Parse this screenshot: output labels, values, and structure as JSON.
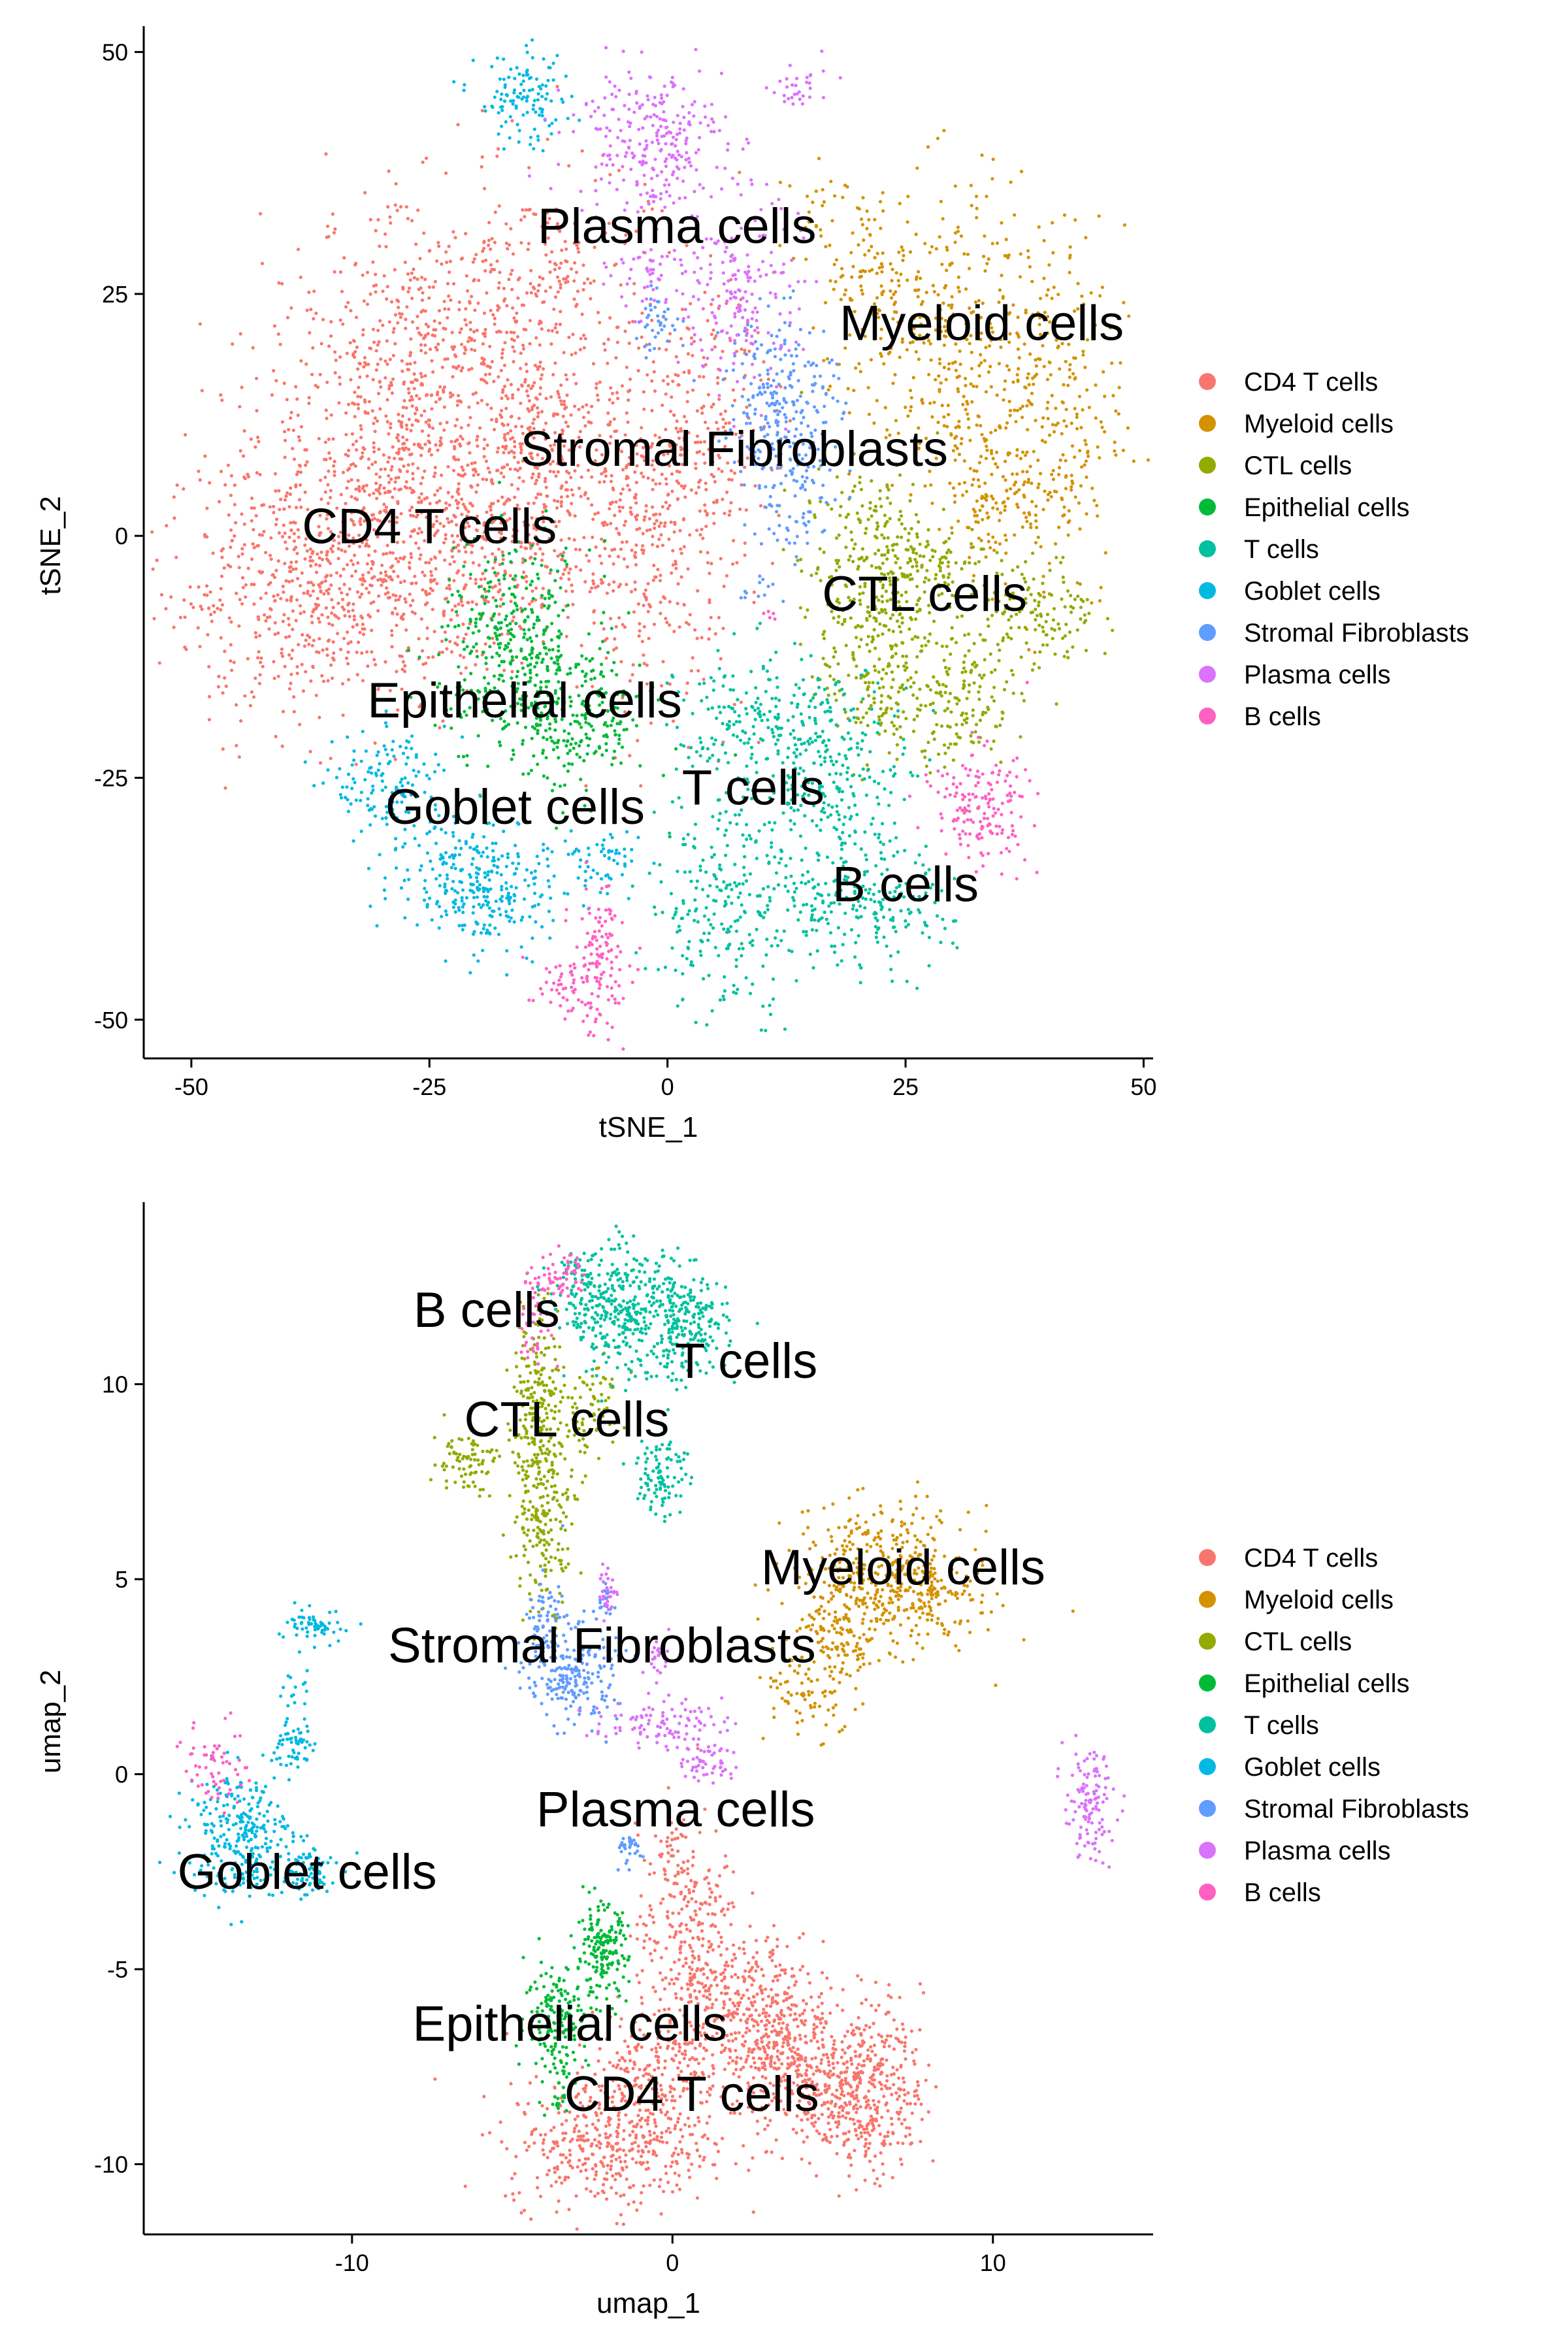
{
  "palette": {
    "CD4 T cells": "#F8766D",
    "Myeloid cells": "#D39200",
    "CTL cells": "#93AA00",
    "Epithelial cells": "#00BA38",
    "T cells": "#00C19F",
    "Goblet cells": "#00B9E3",
    "Stromal Fibroblasts": "#619CFF",
    "Plasma cells": "#DB72FB",
    "B cells": "#FF61C3"
  },
  "chart_data": [
    {
      "type": "scatter",
      "title": "",
      "xlabel": "tSNE_1",
      "ylabel": "tSNE_2",
      "xlim": [
        -55,
        51
      ],
      "ylim": [
        -54,
        52
      ],
      "xticks": [
        -50,
        -25,
        0,
        25,
        50
      ],
      "xtick_labels": [
        "-50",
        "-25",
        "0",
        "25",
        "50"
      ],
      "yticks": [
        -50,
        -25,
        0,
        25,
        50
      ],
      "ytick_labels": [
        "-50",
        "-25",
        "0",
        "25",
        "50"
      ],
      "grid": false,
      "legend_position": "right",
      "legend": [
        "CD4 T cells",
        "Myeloid cells",
        "CTL cells",
        "Epithelial cells",
        "T cells",
        "Goblet cells",
        "Stromal Fibroblasts",
        "Plasma cells",
        "B cells"
      ],
      "clusters": [
        {
          "name": "CD4 T cells",
          "blobs": [
            [
              -37,
              -5,
              8,
              7,
              700
            ],
            [
              -28,
              14,
              7,
              9,
              550
            ],
            [
              -20,
              20,
              7,
              8,
              300
            ],
            [
              -14,
              3,
              6,
              7,
              300
            ],
            [
              -24,
              -2,
              6,
              6,
              250
            ],
            [
              -10,
              28,
              4,
              5,
              120
            ],
            [
              -2,
              -1,
              5,
              9,
              350
            ],
            [
              3,
              12,
              4,
              7,
              200
            ],
            [
              -13,
              12,
              4,
              4,
              120
            ]
          ]
        },
        {
          "name": "Myeloid cells",
          "blobs": [
            [
              30,
              20,
              5,
              8,
              320
            ],
            [
              40,
              12,
              4,
              10,
              280
            ],
            [
              22,
              26,
              3,
              5,
              100
            ],
            [
              34,
              4,
              3,
              3,
              100
            ],
            [
              16,
              34,
              1.5,
              3,
              25
            ],
            [
              28,
              42,
              0.6,
              0.6,
              3
            ]
          ]
        },
        {
          "name": "CTL cells",
          "blobs": [
            [
              22,
              -3,
              4,
              5,
              260
            ],
            [
              22,
              -14,
              3,
              5,
              200
            ],
            [
              31,
              -16,
              2.5,
              4,
              150
            ],
            [
              39,
              -8,
              3,
              3,
              130
            ],
            [
              28,
              -3,
              3,
              2,
              60
            ]
          ]
        },
        {
          "name": "Epithelial cells",
          "blobs": [
            [
              -16,
              -11,
              4,
              5,
              350
            ],
            [
              -10,
              -19,
              4,
              4,
              250
            ]
          ]
        },
        {
          "name": "T cells",
          "blobs": [
            [
              9,
              -20,
              4,
              4,
              200
            ],
            [
              18,
              -25,
              4,
              5,
              250
            ],
            [
              6,
              -38,
              4,
              6,
              250
            ],
            [
              22,
              -39,
              4,
              3,
              150
            ],
            [
              16,
              -38,
              2,
              2,
              50
            ]
          ]
        },
        {
          "name": "Goblet cells",
          "blobs": [
            [
              -21,
              -35,
              4,
              3,
              200
            ],
            [
              -29,
              -26,
              3,
              3,
              150
            ],
            [
              -17,
              -38,
              3,
              3,
              100
            ],
            [
              -15,
              45,
              2.5,
              2.5,
              120
            ],
            [
              -8,
              -34,
              2,
              2,
              40
            ],
            [
              -5,
              -34,
              1,
              2,
              20
            ]
          ]
        },
        {
          "name": "Stromal Fibroblasts",
          "blobs": [
            [
              12,
              15,
              3,
              4,
              200
            ],
            [
              13,
              5,
              2.5,
              4,
              120
            ],
            [
              -1,
              22,
              1.5,
              1.5,
              40
            ],
            [
              9,
              -5,
              1,
              1,
              10
            ]
          ]
        },
        {
          "name": "Plasma cells",
          "blobs": [
            [
              -2,
              41,
              4,
              4,
              260
            ],
            [
              8,
              25,
              3,
              5,
              180
            ],
            [
              -2,
              27,
              2,
              2,
              50
            ],
            [
              14,
              46,
              1.5,
              1.5,
              30
            ]
          ]
        },
        {
          "name": "B cells",
          "blobs": [
            [
              33,
              -28,
              2.5,
              3,
              150
            ],
            [
              -7,
              -44,
              1.5,
              4,
              120
            ],
            [
              -11,
              -47,
              2,
              1.5,
              50
            ],
            [
              29,
              -26,
              1,
              1,
              10
            ],
            [
              11,
              -8,
              0.5,
              0.5,
              5
            ]
          ]
        }
      ],
      "annotations": [
        {
          "text": "Plasma cells",
          "x": 1,
          "y": 32
        },
        {
          "text": "Myeloid cells",
          "x": 33,
          "y": 22
        },
        {
          "text": "Stromal Fibroblasts",
          "x": 7,
          "y": 9
        },
        {
          "text": "CD4 T cells",
          "x": -25,
          "y": 1
        },
        {
          "text": "CTL cells",
          "x": 27,
          "y": -6
        },
        {
          "text": "Epithelial cells",
          "x": -15,
          "y": -17
        },
        {
          "text": "Goblet cells",
          "x": -16,
          "y": -28
        },
        {
          "text": "T cells",
          "x": 9,
          "y": -26
        },
        {
          "text": "B cells",
          "x": 25,
          "y": -36
        }
      ]
    },
    {
      "type": "scatter",
      "title": "",
      "xlabel": "umap_1",
      "ylabel": "umap_2",
      "xlim": [
        -16.5,
        15
      ],
      "ylim": [
        -11.8,
        14.5
      ],
      "xticks": [
        -10,
        0,
        10
      ],
      "xtick_labels": [
        "-10",
        "0",
        "10"
      ],
      "yticks": [
        -10,
        -5,
        0,
        5,
        10
      ],
      "ytick_labels": [
        "-10",
        "-5",
        "0",
        "5",
        "10"
      ],
      "grid": false,
      "legend_position": "right",
      "legend": [
        "CD4 T cells",
        "Myeloid cells",
        "CTL cells",
        "Epithelial cells",
        "T cells",
        "Goblet cells",
        "Stromal Fibroblasts",
        "Plasma cells",
        "B cells"
      ],
      "clusters": [
        {
          "name": "CD4 T cells",
          "blobs": [
            [
              6,
              -8,
              0.9,
              1.1,
              450
            ],
            [
              2.5,
              -6.3,
              1.1,
              1.0,
              400
            ],
            [
              -2,
              -9.5,
              1.6,
              0.8,
              400
            ],
            [
              0.5,
              -4,
              0.8,
              1.3,
              250
            ],
            [
              -0.5,
              -7.5,
              1.0,
              1.0,
              250
            ],
            [
              4,
              -7.8,
              0.8,
              0.8,
              200
            ],
            [
              0,
              -2,
              0.3,
              0.5,
              30
            ]
          ]
        },
        {
          "name": "Myeloid cells",
          "blobs": [
            [
              6.5,
              5,
              1.4,
              0.9,
              450
            ],
            [
              5,
              3.3,
              0.7,
              0.9,
              120
            ],
            [
              4,
              1.8,
              0.6,
              0.5,
              50
            ],
            [
              8.5,
              4.5,
              0.6,
              0.5,
              60
            ]
          ]
        },
        {
          "name": "CTL cells",
          "blobs": [
            [
              -4,
              7,
              0.5,
              1.3,
              250
            ],
            [
              -4.2,
              10,
              0.4,
              1.2,
              150
            ],
            [
              -6.5,
              8,
              0.5,
              0.4,
              80
            ],
            [
              -2.5,
              9.5,
              0.5,
              0.6,
              60
            ]
          ]
        },
        {
          "name": "Epithelial cells",
          "blobs": [
            [
              -2.2,
              -4.6,
              0.4,
              0.6,
              180
            ],
            [
              -3.6,
              -6.2,
              0.5,
              0.7,
              160
            ],
            [
              -3.5,
              -8,
              0.3,
              0.5,
              30
            ]
          ]
        },
        {
          "name": "T cells",
          "blobs": [
            [
              -1.5,
              11.8,
              0.9,
              0.8,
              350
            ],
            [
              0.5,
              11.5,
              0.6,
              0.7,
              200
            ],
            [
              -0.3,
              7.8,
              0.4,
              0.6,
              100
            ],
            [
              -2.8,
              12.5,
              0.4,
              0.4,
              60
            ]
          ]
        },
        {
          "name": "Goblet cells",
          "blobs": [
            [
              -13.5,
              -1.5,
              0.8,
              0.8,
              280
            ],
            [
              -11.5,
              -2.5,
              0.5,
              0.4,
              80
            ],
            [
              -11.8,
              0.7,
              0.3,
              0.3,
              50
            ],
            [
              -11,
              3.8,
              0.5,
              0.2,
              60
            ],
            [
              -11.8,
              2,
              0.2,
              0.5,
              20
            ]
          ]
        },
        {
          "name": "Stromal Fibroblasts",
          "blobs": [
            [
              -3.1,
              2.5,
              0.7,
              0.6,
              200
            ],
            [
              -4,
              3.8,
              0.3,
              0.6,
              80
            ],
            [
              -1.3,
              -1.9,
              0.3,
              0.2,
              30
            ],
            [
              -2.2,
              4.3,
              0.2,
              0.3,
              20
            ]
          ]
        },
        {
          "name": "Plasma cells",
          "blobs": [
            [
              13,
              -0.8,
              0.4,
              0.7,
              120
            ],
            [
              -0.5,
              1.3,
              1.0,
              0.3,
              100
            ],
            [
              1.2,
              0.3,
              0.4,
              0.3,
              50
            ],
            [
              -2.0,
              4.7,
              0.15,
              0.3,
              30
            ],
            [
              -0.5,
              3,
              0.2,
              0.3,
              25
            ]
          ]
        },
        {
          "name": "B cells",
          "blobs": [
            [
              -3.5,
              12.8,
              0.4,
              0.3,
              60
            ],
            [
              -14.2,
              0.3,
              0.5,
              0.6,
              60
            ],
            [
              -4.3,
              11.5,
              0.3,
              0.6,
              40
            ]
          ]
        }
      ],
      "annotations": [
        {
          "text": "B cells",
          "x": -5.8,
          "y": 11.9
        },
        {
          "text": "T cells",
          "x": 2.3,
          "y": 10.6
        },
        {
          "text": "CTL cells",
          "x": -3.3,
          "y": 9.1
        },
        {
          "text": "Myeloid cells",
          "x": 7.2,
          "y": 5.3
        },
        {
          "text": "Stromal Fibroblasts",
          "x": -2.2,
          "y": 3.3
        },
        {
          "text": "Plasma cells",
          "x": 0.1,
          "y": -0.9
        },
        {
          "text": "Goblet cells",
          "x": -11.4,
          "y": -2.5
        },
        {
          "text": "Epithelial cells",
          "x": -3.2,
          "y": -6.4
        },
        {
          "text": "CD4 T cells",
          "x": 0.6,
          "y": -8.2
        }
      ]
    }
  ]
}
